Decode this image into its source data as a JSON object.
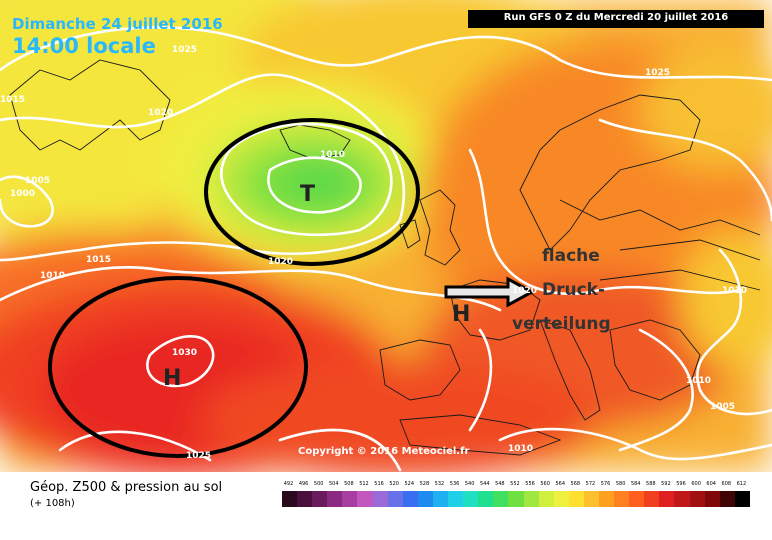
{
  "header": {
    "date": "Dimanche 24 juillet 2016",
    "time": "14:00 locale",
    "run": "Run GFS 0 Z du Mercredi 20 juillet 2016"
  },
  "isobars": [
    "1025",
    "1015",
    "1020",
    "1005",
    "1000",
    "1010",
    "1010",
    "1015",
    "1020",
    "1025",
    "1020",
    "1030",
    "1025",
    "1010",
    "1010",
    "1005",
    "1010"
  ],
  "systems": {
    "low": "T",
    "high_atlantic": "H",
    "high_france": "H"
  },
  "annotation": {
    "line1": "flache",
    "line2": "Druck-",
    "line3": "verteilung"
  },
  "copyright": "Copyright © 2016 Meteociel.fr",
  "legend": {
    "title": "Géop. Z500 & pression au sol",
    "subtitle": "(+ 108h)",
    "scale": [
      "492",
      "496",
      "500",
      "504",
      "508",
      "512",
      "516",
      "520",
      "524",
      "528",
      "532",
      "536",
      "540",
      "544",
      "548",
      "552",
      "556",
      "560",
      "564",
      "568",
      "572",
      "576",
      "580",
      "584",
      "588",
      "592",
      "596",
      "600",
      "604",
      "608",
      "612"
    ],
    "scale_colors": [
      "#2a0a1e",
      "#4a0f3c",
      "#6a1a5e",
      "#8a2a80",
      "#a83ca0",
      "#c058c0",
      "#9a6ad8",
      "#6a70e8",
      "#3a6ef0",
      "#1f8af0",
      "#1fb0f0",
      "#1fd0e8",
      "#1fe0c0",
      "#20e090",
      "#40e060",
      "#70e040",
      "#a0e840",
      "#d0f040",
      "#f0f040",
      "#ffe030",
      "#ffc030",
      "#ffa020",
      "#ff8020",
      "#ff6020",
      "#f04020",
      "#e02020",
      "#c01818",
      "#a01010",
      "#800808",
      "#400404",
      "#000000"
    ]
  }
}
